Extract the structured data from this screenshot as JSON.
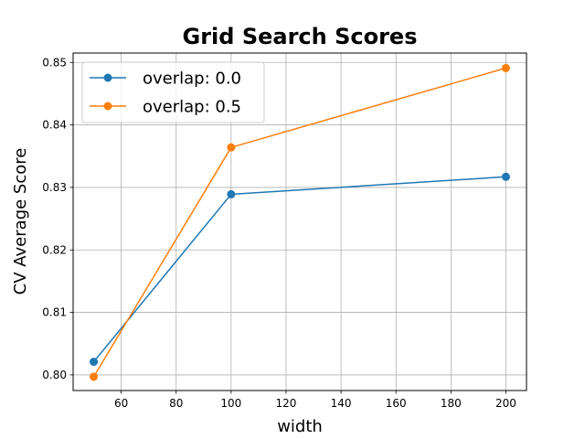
{
  "chart_data": {
    "type": "line",
    "title": "Grid Search Scores",
    "xlabel": "width",
    "ylabel": "CV Average Score",
    "xlim": [
      42.5,
      207.5
    ],
    "ylim": [
      0.7975,
      0.8515
    ],
    "xticks": [
      60,
      80,
      100,
      120,
      140,
      160,
      180,
      200
    ],
    "xtick_labels": [
      "60",
      "80",
      "100",
      "120",
      "140",
      "160",
      "180",
      "200"
    ],
    "yticks": [
      0.8,
      0.81,
      0.82,
      0.83,
      0.84,
      0.85
    ],
    "ytick_labels": [
      "0.80",
      "0.81",
      "0.82",
      "0.83",
      "0.84",
      "0.85"
    ],
    "grid": true,
    "legend_position": "top-left",
    "x": [
      50,
      100,
      200
    ],
    "series": [
      {
        "name": "overlap: 0.0",
        "values": [
          0.8021,
          0.8289,
          0.8317
        ],
        "color": "#1f77b4"
      },
      {
        "name": "overlap: 0.5",
        "values": [
          0.7997,
          0.8364,
          0.8491
        ],
        "color": "#ff7f0e"
      }
    ]
  }
}
